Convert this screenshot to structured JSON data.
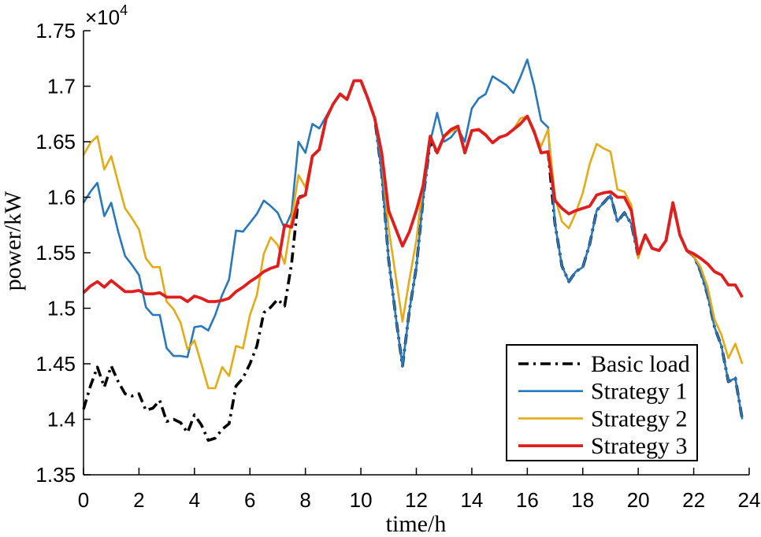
{
  "chart_data": {
    "type": "line",
    "title": "",
    "xlabel": "time/h",
    "ylabel": "power/kW",
    "xlim": [
      0,
      24
    ],
    "ylim": [
      13500,
      17500
    ],
    "x_ticks": [
      0,
      2,
      4,
      6,
      8,
      10,
      12,
      14,
      16,
      18,
      20,
      22,
      24
    ],
    "x_tick_labels": [
      "0",
      "2",
      "4",
      "6",
      "8",
      "10",
      "12",
      "14",
      "16",
      "18",
      "20",
      "22",
      "24"
    ],
    "y_ticks": [
      13500,
      14000,
      14500,
      15000,
      15500,
      16000,
      16500,
      17000,
      17500
    ],
    "y_tick_labels": [
      "1.35",
      "1.4",
      "1.45",
      "1.5",
      "1.55",
      "1.6",
      "1.65",
      "1.7",
      "1.75"
    ],
    "y_exponent": {
      "base": "×10",
      "power": "4"
    },
    "grid": false,
    "legend_location": "bottom-right",
    "x": [
      0,
      0.25,
      0.5,
      0.75,
      1,
      1.25,
      1.5,
      1.75,
      2,
      2.25,
      2.5,
      2.75,
      3,
      3.25,
      3.5,
      3.75,
      4,
      4.25,
      4.5,
      4.75,
      5,
      5.25,
      5.5,
      5.75,
      6,
      6.25,
      6.5,
      6.75,
      7,
      7.25,
      7.5,
      7.75,
      8,
      8.25,
      8.5,
      8.75,
      9,
      9.25,
      9.5,
      9.75,
      10,
      10.25,
      10.5,
      10.75,
      11,
      11.25,
      11.5,
      11.75,
      12,
      12.25,
      12.5,
      12.75,
      13,
      13.25,
      13.5,
      13.75,
      14,
      14.25,
      14.5,
      14.75,
      15,
      15.25,
      15.5,
      15.75,
      16,
      16.25,
      16.5,
      16.75,
      17,
      17.25,
      17.5,
      17.75,
      18,
      18.25,
      18.5,
      18.75,
      19,
      19.25,
      19.5,
      19.75,
      20,
      20.25,
      20.5,
      20.75,
      21,
      21.25,
      21.5,
      21.75,
      22,
      22.25,
      22.5,
      22.75,
      23,
      23.25,
      23.5,
      23.75
    ],
    "series": [
      {
        "name": "Basic load",
        "color": "#000000",
        "style": "dash-dot",
        "values": [
          14090,
          14300,
          14470,
          14290,
          14480,
          14340,
          14230,
          14210,
          14230,
          14080,
          14100,
          14170,
          13980,
          14000,
          13970,
          13880,
          14040,
          13950,
          13810,
          13830,
          13910,
          13960,
          14300,
          14370,
          14500,
          14660,
          14960,
          15010,
          15080,
          15020,
          15400,
          16000,
          16020,
          16370,
          16430,
          16710,
          16840,
          16930,
          16880,
          17050,
          17050,
          16890,
          16710,
          16220,
          15440,
          14940,
          14480,
          14980,
          15370,
          16000,
          16500,
          16400,
          16550,
          16610,
          16640,
          16400,
          16600,
          16610,
          16560,
          16490,
          16540,
          16560,
          16610,
          16660,
          16730,
          16590,
          16400,
          16410,
          15760,
          15380,
          15240,
          15330,
          15370,
          15580,
          15880,
          15950,
          16020,
          15780,
          15860,
          15760,
          15470,
          15660,
          15540,
          15520,
          15610,
          15950,
          15660,
          15520,
          15470,
          15330,
          15120,
          14830,
          14660,
          14340,
          14370,
          14000
        ]
      },
      {
        "name": "Strategy 1",
        "color": "#2878BE",
        "style": "solid",
        "values": [
          15950,
          16050,
          16130,
          15830,
          15950,
          15690,
          15470,
          15390,
          15300,
          15010,
          14940,
          14940,
          14640,
          14570,
          14570,
          14560,
          14830,
          14840,
          14800,
          14940,
          15120,
          15260,
          15700,
          15690,
          15770,
          15850,
          15970,
          15920,
          15860,
          15720,
          15860,
          16500,
          16400,
          16660,
          16620,
          16730,
          16840,
          16930,
          16880,
          17050,
          17050,
          16890,
          16710,
          16220,
          15440,
          14940,
          14480,
          14980,
          15370,
          16000,
          16500,
          16760,
          16500,
          16540,
          16620,
          16500,
          16800,
          16890,
          16930,
          17090,
          17050,
          17010,
          16940,
          17080,
          17240,
          17000,
          16690,
          16630,
          15760,
          15380,
          15240,
          15330,
          15370,
          15580,
          15880,
          15950,
          16020,
          15780,
          15860,
          15760,
          15470,
          15660,
          15540,
          15520,
          15610,
          15950,
          15660,
          15520,
          15470,
          15330,
          15120,
          14830,
          14660,
          14340,
          14370,
          14000
        ]
      },
      {
        "name": "Strategy 2",
        "color": "#E6AA14",
        "style": "solid",
        "values": [
          16380,
          16490,
          16550,
          16250,
          16370,
          16130,
          15900,
          15810,
          15710,
          15450,
          15370,
          15370,
          15060,
          14990,
          14870,
          14630,
          14710,
          14500,
          14280,
          14280,
          14470,
          14390,
          14660,
          14640,
          14940,
          15120,
          15490,
          15640,
          15570,
          15400,
          15800,
          16200,
          16090,
          16370,
          16430,
          16710,
          16840,
          16930,
          16880,
          17050,
          17050,
          16890,
          16710,
          16360,
          15720,
          15300,
          14880,
          15260,
          15610,
          16150,
          16540,
          16400,
          16540,
          16590,
          16620,
          16400,
          16590,
          16610,
          16570,
          16490,
          16540,
          16560,
          16610,
          16710,
          16730,
          16570,
          16460,
          16610,
          16000,
          15780,
          15720,
          15860,
          16040,
          16300,
          16480,
          16440,
          16410,
          16070,
          16050,
          15930,
          15450,
          15660,
          15540,
          15520,
          15610,
          15950,
          15660,
          15520,
          15470,
          15370,
          15190,
          14900,
          14760,
          14550,
          14680,
          14500
        ]
      },
      {
        "name": "Strategy 3",
        "color": "#E11E1E",
        "style": "solid",
        "values": [
          15140,
          15200,
          15240,
          15190,
          15250,
          15200,
          15150,
          15150,
          15160,
          15130,
          15130,
          15140,
          15100,
          15100,
          15100,
          15060,
          15110,
          15090,
          15060,
          15060,
          15070,
          15090,
          15150,
          15190,
          15240,
          15280,
          15330,
          15360,
          15380,
          15750,
          15730,
          15990,
          16020,
          16370,
          16430,
          16710,
          16840,
          16930,
          16880,
          17050,
          17050,
          16890,
          16710,
          16400,
          15880,
          15720,
          15560,
          15690,
          15880,
          16110,
          16550,
          16400,
          16550,
          16610,
          16640,
          16400,
          16600,
          16610,
          16560,
          16490,
          16540,
          16560,
          16610,
          16660,
          16730,
          16590,
          16400,
          16410,
          15970,
          15900,
          15850,
          15880,
          15900,
          15920,
          16020,
          16040,
          16050,
          16000,
          16000,
          15880,
          15490,
          15660,
          15540,
          15520,
          15610,
          15950,
          15660,
          15520,
          15490,
          15450,
          15400,
          15330,
          15300,
          15210,
          15210,
          15100
        ]
      }
    ]
  }
}
